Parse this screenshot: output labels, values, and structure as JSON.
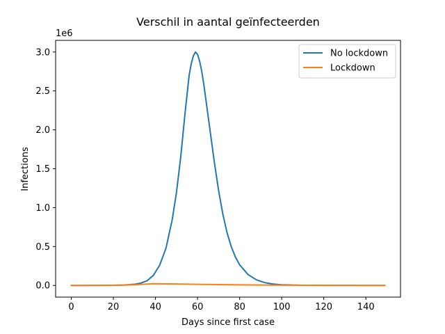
{
  "chart_data": {
    "type": "line",
    "title": "Verschil in aantal geïnfecteerden",
    "xlabel": "Days since first case",
    "ylabel": "Infections",
    "y_offset_label": "1e6",
    "xlim": [
      -7.45,
      156.45
    ],
    "ylim": [
      -150000,
      3150000
    ],
    "x_ticks": [
      0,
      20,
      40,
      60,
      80,
      100,
      120,
      140
    ],
    "y_ticks": [
      0,
      500000,
      1000000,
      1500000,
      2000000,
      2500000,
      3000000
    ],
    "y_tick_labels": [
      "0.0",
      "0.5",
      "1.0",
      "1.5",
      "2.0",
      "2.5",
      "3.0"
    ],
    "grid": false,
    "legend_position": "top-right",
    "series": [
      {
        "name": "No lockdown",
        "color": "#1f77b4",
        "x": [
          0,
          10,
          20,
          25,
          30,
          33,
          36,
          39,
          42,
          45,
          48,
          50,
          52,
          54,
          56,
          57,
          58,
          59,
          60,
          61,
          62,
          63,
          64,
          66,
          68,
          70,
          72,
          74,
          76,
          78,
          80,
          84,
          88,
          92,
          96,
          100,
          110,
          120,
          130,
          140,
          149
        ],
        "y": [
          0,
          200,
          1500,
          5000,
          15000,
          30000,
          60000,
          130000,
          260000,
          480000,
          850000,
          1200000,
          1650000,
          2200000,
          2700000,
          2850000,
          2950000,
          3000000,
          2970000,
          2880000,
          2750000,
          2580000,
          2380000,
          1980000,
          1580000,
          1220000,
          920000,
          680000,
          500000,
          365000,
          265000,
          140000,
          72000,
          36000,
          18000,
          9000,
          2000,
          500,
          100,
          20,
          0
        ]
      },
      {
        "name": "Lockdown",
        "color": "#ff7f0e",
        "x": [
          0,
          10,
          20,
          25,
          30,
          35,
          38,
          40,
          42,
          45,
          50,
          60,
          70,
          80,
          90,
          100,
          110,
          120,
          130,
          140,
          149
        ],
        "y": [
          0,
          500,
          2000,
          4000,
          9000,
          17000,
          21000,
          22000,
          21500,
          20500,
          18500,
          14500,
          11000,
          8000,
          5500,
          3500,
          2200,
          1200,
          700,
          300,
          100
        ]
      }
    ]
  }
}
